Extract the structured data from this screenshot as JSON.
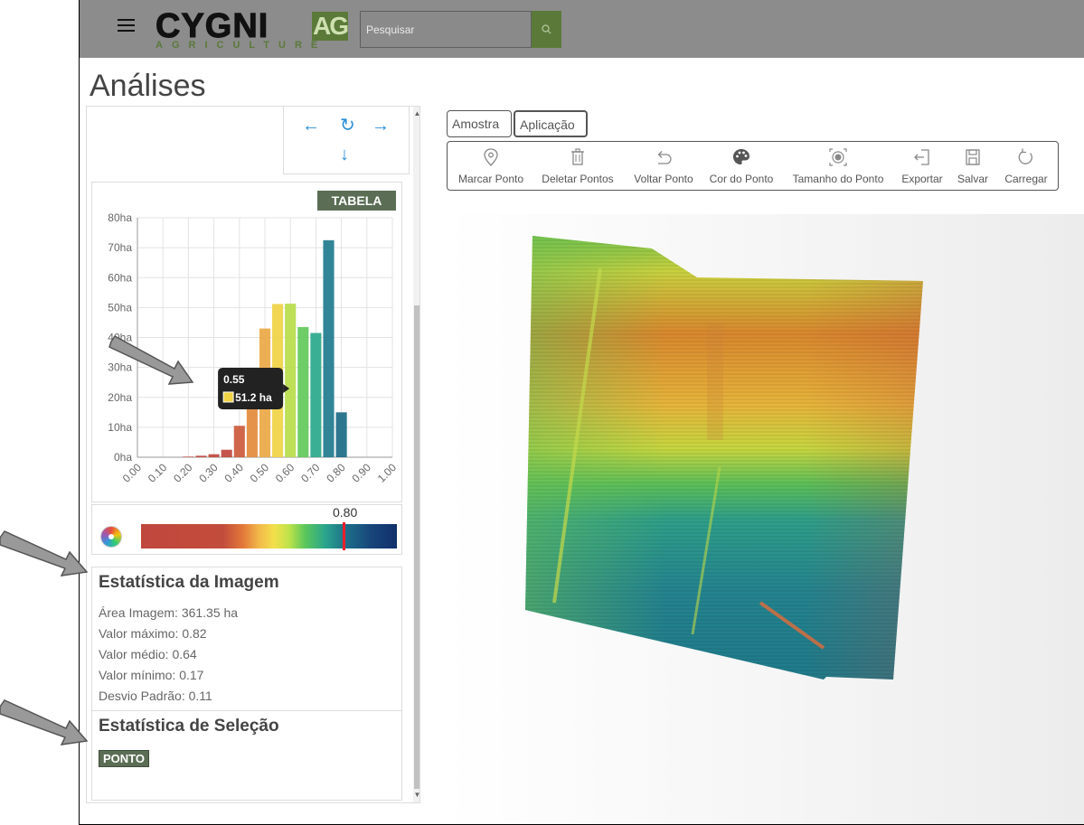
{
  "header": {
    "logo_text": "CYGNI",
    "logo_badge": "AG",
    "logo_sub": "AGRICULTURE",
    "search_placeholder": "Pesquisar"
  },
  "page_title": "Análises",
  "histogram": {
    "table_button": "TABELA",
    "tooltip": {
      "label": "0.55",
      "value": "51.2 ha",
      "swatch_color": "#f0d244"
    }
  },
  "chart_data": {
    "type": "bar",
    "x_ticks": [
      "0.00",
      "0.10",
      "0.20",
      "0.30",
      "0.40",
      "0.50",
      "0.60",
      "0.70",
      "0.80",
      "0.90",
      "1.00"
    ],
    "y_ticks": [
      "0ha",
      "10ha",
      "20ha",
      "30ha",
      "40ha",
      "50ha",
      "60ha",
      "70ha",
      "80ha"
    ],
    "ylim": [
      0,
      80
    ],
    "xlim": [
      0,
      1
    ],
    "bars": [
      {
        "x": 0.2,
        "value": 0.2,
        "color": "#c0473d"
      },
      {
        "x": 0.25,
        "value": 0.5,
        "color": "#c0473d"
      },
      {
        "x": 0.3,
        "value": 1.0,
        "color": "#c0473d"
      },
      {
        "x": 0.35,
        "value": 2.5,
        "color": "#c0473d"
      },
      {
        "x": 0.4,
        "value": 10.5,
        "color": "#cc5a3c"
      },
      {
        "x": 0.45,
        "value": 29.5,
        "color": "#e38a3c"
      },
      {
        "x": 0.5,
        "value": 43.0,
        "color": "#eba845"
      },
      {
        "x": 0.55,
        "value": 51.2,
        "color": "#f0d244"
      },
      {
        "x": 0.6,
        "value": 51.3,
        "color": "#b9dc4a"
      },
      {
        "x": 0.65,
        "value": 43.5,
        "color": "#62c95a"
      },
      {
        "x": 0.7,
        "value": 41.5,
        "color": "#2aa88a"
      },
      {
        "x": 0.75,
        "value": 72.5,
        "color": "#1f7b8e"
      },
      {
        "x": 0.8,
        "value": 15.0,
        "color": "#1c6b86"
      }
    ],
    "grid": true
  },
  "colorbar": {
    "value_label": "0.80",
    "marker_value": 0.8
  },
  "stats_image": {
    "title": "Estatística da Imagem",
    "lines": [
      "Área Imagem: 361.35 ha",
      "Valor máximo: 0.82",
      "Valor médio: 0.64",
      "Valor mínimo: 0.17",
      "Desvio Padrão: 0.11"
    ]
  },
  "stats_selection": {
    "title": "Estatística de Seleção",
    "badge": "PONTO"
  },
  "tabs": [
    "Amostra",
    "Aplicação"
  ],
  "toolbar": {
    "items": [
      {
        "label": "Marcar Ponto",
        "icon": "map-pin-icon"
      },
      {
        "label": "Deletar Pontos",
        "icon": "trash-icon"
      },
      {
        "label": "Voltar Ponto",
        "icon": "undo-icon"
      },
      {
        "label": "Cor do Ponto",
        "icon": "palette-icon"
      },
      {
        "label": "Tamanho do Ponto",
        "icon": "point-size-icon"
      },
      {
        "label": "Exportar",
        "icon": "export-icon"
      },
      {
        "label": "Salvar",
        "icon": "save-icon"
      },
      {
        "label": "Carregar",
        "icon": "reload-icon"
      }
    ]
  },
  "nav": {
    "left": "←",
    "refresh": "↻",
    "right": "→",
    "down": "↓"
  }
}
